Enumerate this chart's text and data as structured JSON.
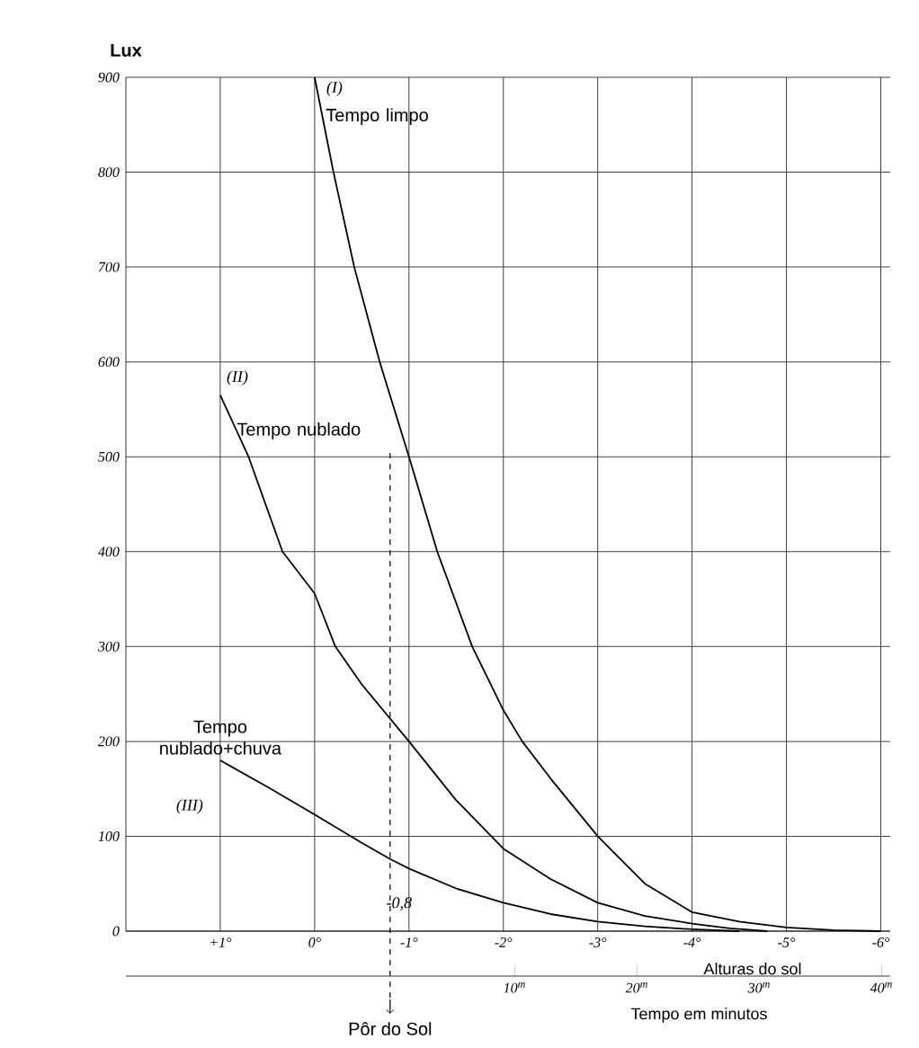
{
  "chart_data": {
    "type": "line",
    "xlabel": "Alturas do sol",
    "ylabel": "Lux",
    "x2label": "Tempo em minutos",
    "xlim": [
      2,
      -6.1
    ],
    "xticks": [
      {
        "value": 1,
        "label": "+1°"
      },
      {
        "value": 0,
        "label": "0°"
      },
      {
        "value": -1,
        "label": "-1°"
      },
      {
        "value": -2,
        "label": "-2°"
      },
      {
        "value": -3,
        "label": "-3°"
      },
      {
        "value": -4,
        "label": "-4°"
      },
      {
        "value": -5,
        "label": "-5°"
      },
      {
        "value": -6,
        "label": "-6°"
      }
    ],
    "x2lim": [
      -21.8,
      40.7
    ],
    "x2ticks": [
      {
        "value": 10,
        "label": "10$^{m}$"
      },
      {
        "value": 20,
        "label": "20$^{m}$"
      },
      {
        "value": 30,
        "label": "30$^{m}$"
      },
      {
        "value": 40,
        "label": "40$^{m}$"
      }
    ],
    "ylim": [
      0,
      900
    ],
    "yticks": [
      0,
      100,
      200,
      300,
      400,
      500,
      600,
      700,
      800,
      900
    ],
    "grid": true,
    "marker": "none",
    "line_style": "solid",
    "series": [
      {
        "name": "Tempo limpo",
        "color": "#000000",
        "x": [
          0,
          -0.2,
          -0.42,
          -0.69,
          -1.0,
          -1.3,
          -1.67,
          -2.0,
          -2.2,
          -2.5,
          -3.0,
          -3.5,
          -4.0,
          -4.5,
          -5.0,
          -5.5,
          -6.0
        ],
        "values": [
          900,
          800,
          700,
          600,
          500,
          400,
          300,
          233,
          200,
          161,
          100,
          50,
          20,
          10,
          4,
          1,
          0
        ]
      },
      {
        "name": "Tempo nublado",
        "color": "#000000",
        "x": [
          1,
          0.7,
          0.34,
          0,
          -0.22,
          -0.5,
          -1.0,
          -1.5,
          -2.0,
          -2.5,
          -3.0,
          -3.5,
          -4.0,
          -4.4,
          -4.8
        ],
        "values": [
          565,
          500,
          400,
          356,
          300,
          260,
          200,
          138,
          87,
          55,
          30,
          16,
          8,
          3,
          0
        ]
      },
      {
        "name": "Tempo nublado+chuva",
        "color": "#000000",
        "x": [
          1,
          0.5,
          0,
          -0.5,
          -0.8,
          -1.0,
          -1.5,
          -2.0,
          -2.5,
          -3.0,
          -3.5,
          -4.0,
          -4.5
        ],
        "values": [
          180,
          152,
          123,
          93,
          76,
          66,
          45,
          30,
          18,
          10,
          5,
          2,
          0
        ]
      }
    ],
    "ref_lines": [
      {
        "axis": "x",
        "value": -0.8,
        "label": "Pôr do Sol",
        "line_style": "dashed"
      }
    ],
    "annotations": [
      {
        "text": "(I)",
        "x": 0,
        "y": 900
      },
      {
        "text": "(II)",
        "x": 1,
        "y": 565
      },
      {
        "text": "(III)",
        "x": 1,
        "y": 180
      },
      {
        "text": "-0,8",
        "x": -0.8,
        "y": 0
      }
    ]
  }
}
